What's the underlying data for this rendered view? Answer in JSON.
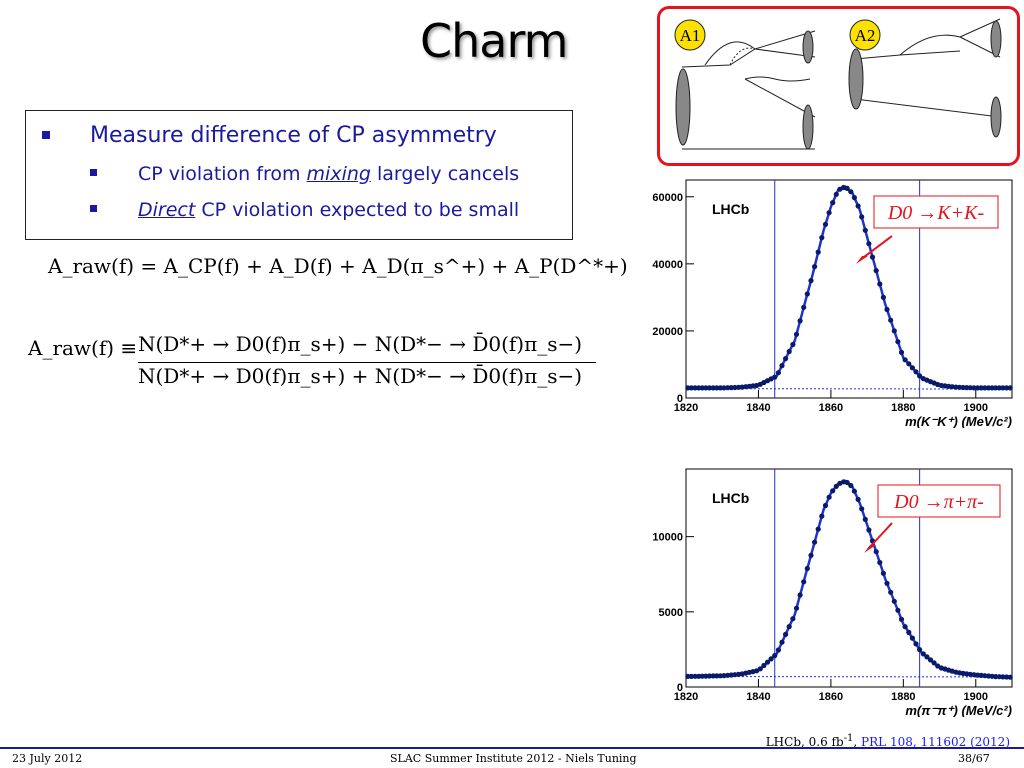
{
  "slide": {
    "title": "Charm",
    "bullets": {
      "main": "Measure difference of CP asymmetry",
      "sub1_pre": "CP violation from ",
      "sub1_em": "mixing",
      "sub1_post": " largely cancels",
      "sub2_em": "Direct",
      "sub2_post": " CP violation expected to be small"
    },
    "equations": {
      "eq1": "A_raw(f) = A_CP(f) + A_D(f) + A_D(π_s^+) + A_P(D^*+)",
      "eq2_lhs": "A_raw(f) ≡",
      "eq2_num": "N(D*+ → D0(f)π_s+) − N(D*− → D̄0(f)π_s−)",
      "eq2_den": "N(D*+ → D0(f)π_s+) + N(D*− → D̄0(f)π_s−)"
    },
    "feynman": {
      "labelA1": "A1",
      "labelA2": "A2"
    }
  },
  "plots": [
    {
      "experiment": "LHCb",
      "annotation": "D0 →K+K-",
      "xlabel": "m(K⁻K⁺) (MeV/c²)",
      "yticks": [
        "0",
        "20000",
        "40000",
        "60000"
      ],
      "xticks": [
        "1820",
        "1840",
        "1860",
        "1880",
        "1900"
      ]
    },
    {
      "experiment": "LHCb",
      "annotation": "D0 →π+π-",
      "xlabel": "m(π⁻π⁺) (MeV/c²)",
      "yticks": [
        "0",
        "5000",
        "10000"
      ],
      "xticks": [
        "1820",
        "1840",
        "1860",
        "1880",
        "1900"
      ]
    }
  ],
  "chart_data": [
    {
      "type": "scatter",
      "experiment": "LHCb",
      "xlabel": "m(K⁻K⁺) (MeV/c²)",
      "xlim": [
        1820,
        1910
      ],
      "ylim": [
        0,
        65000
      ],
      "peak_x": 1864.8,
      "peak_y": 63000,
      "background_level": 2800,
      "signal_window": [
        1844.5,
        1884.5
      ],
      "x": [
        1820,
        1825,
        1830,
        1835,
        1840,
        1845,
        1850,
        1855,
        1858,
        1860,
        1862,
        1864,
        1866,
        1868,
        1870,
        1875,
        1880,
        1885,
        1890,
        1895,
        1900,
        1905,
        1910
      ],
      "y": [
        3000,
        3000,
        3000,
        3200,
        3800,
        6500,
        17000,
        37000,
        50000,
        57000,
        62000,
        63000,
        61000,
        56000,
        48000,
        28000,
        12000,
        6000,
        3800,
        3200,
        3000,
        3000,
        3000
      ]
    },
    {
      "type": "scatter",
      "experiment": "LHCb",
      "xlabel": "m(π⁻π⁺) (MeV/c²)",
      "xlim": [
        1820,
        1910
      ],
      "ylim": [
        0,
        14500
      ],
      "peak_x": 1864.0,
      "peak_y": 13700,
      "background_level": 700,
      "signal_window": [
        1844.5,
        1884.5
      ],
      "x": [
        1820,
        1825,
        1830,
        1835,
        1840,
        1845,
        1850,
        1855,
        1858,
        1860,
        1862,
        1864,
        1866,
        1868,
        1870,
        1875,
        1880,
        1885,
        1890,
        1895,
        1900,
        1905,
        1910
      ],
      "y": [
        700,
        720,
        750,
        850,
        1100,
        2200,
        4800,
        9200,
        11800,
        12900,
        13500,
        13700,
        13300,
        12200,
        10800,
        7200,
        4200,
        2300,
        1300,
        950,
        800,
        700,
        650
      ]
    }
  ],
  "footer": {
    "date": "23 July 2012",
    "center": "SLAC Summer Institute 2012 - Niels Tuning",
    "page": "38/67",
    "ref_pre": "LHCb, 0.6 fb",
    "ref_sup": "-1",
    "ref_sep": ", ",
    "ref_link": "PRL 108, 111602 (2012)"
  },
  "colors": {
    "bullet": "#1a1aa0",
    "frame": "#e2141e",
    "marker": "#0a1a6a",
    "fit": "#2033cc"
  }
}
